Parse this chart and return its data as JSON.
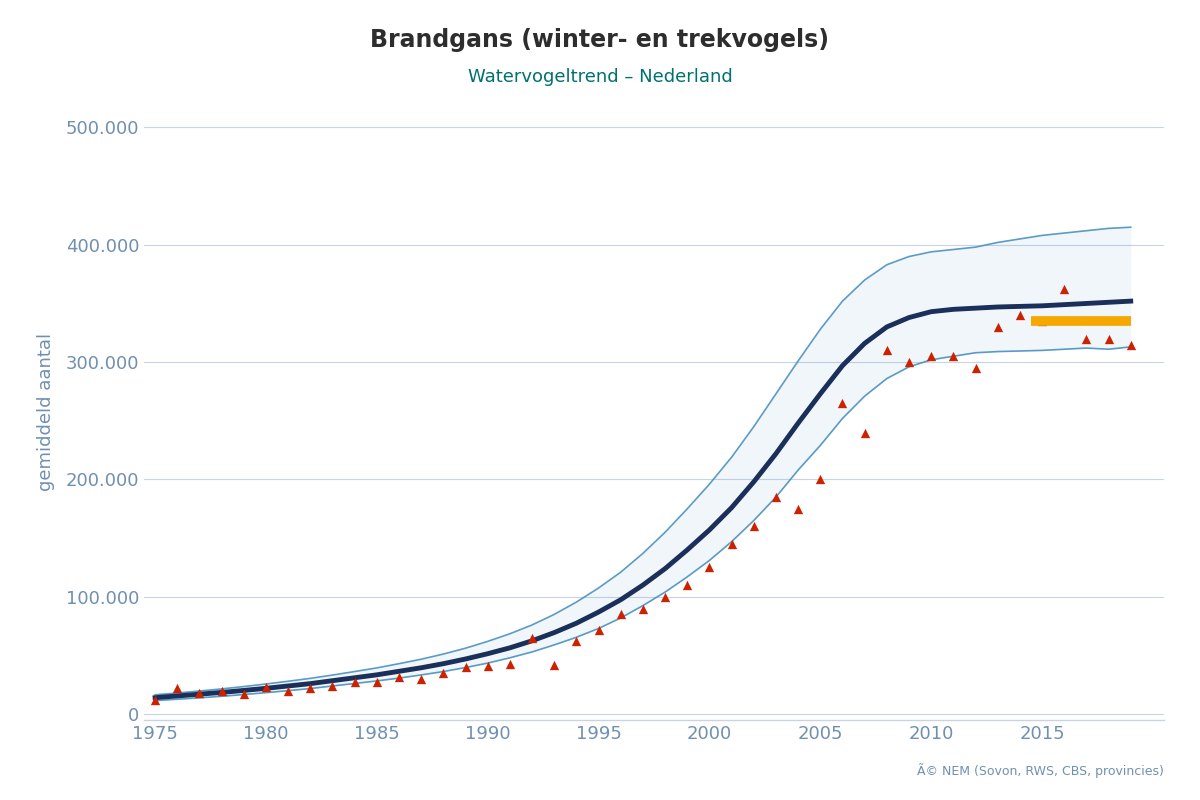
{
  "title": "Brandgans (winter- en trekvogels)",
  "subtitle": "Watervogeltrend – Nederland",
  "xlabel": "",
  "ylabel": "gemiddeld aantal",
  "copyright_text": "Ã© NEM (Sovon, RWS, CBS, provincies)",
  "xmin": 1975,
  "xmax": 2020,
  "ymin": -5000,
  "ymax": 520000,
  "yticks": [
    0,
    100000,
    200000,
    300000,
    400000,
    500000
  ],
  "ytick_labels": [
    "0",
    "100.000",
    "200.000",
    "300.000",
    "400.000",
    "500.000"
  ],
  "xticks": [
    1975,
    1980,
    1985,
    1990,
    1995,
    2000,
    2005,
    2010,
    2015
  ],
  "bg_color": "#ffffff",
  "grid_color": "#c8d4e4",
  "title_color": "#2d2d2d",
  "subtitle_color": "#007070",
  "axis_color": "#7090b0",
  "trend_color": "#1a2f5a",
  "ci_color": "#4a90c0",
  "point_color": "#cc2200",
  "orange_color": "#f5a800",
  "trend_years": [
    1975,
    1976,
    1977,
    1978,
    1979,
    1980,
    1981,
    1982,
    1983,
    1984,
    1985,
    1986,
    1987,
    1988,
    1989,
    1990,
    1991,
    1992,
    1993,
    1994,
    1995,
    1996,
    1997,
    1998,
    1999,
    2000,
    2001,
    2002,
    2003,
    2004,
    2005,
    2006,
    2007,
    2008,
    2009,
    2010,
    2011,
    2012,
    2013,
    2014,
    2015,
    2016,
    2017,
    2018,
    2019
  ],
  "trend_values": [
    14000,
    15500,
    17000,
    18500,
    20200,
    22000,
    24000,
    26000,
    28500,
    31000,
    33500,
    36500,
    39500,
    43000,
    47000,
    51500,
    56500,
    62500,
    69500,
    77500,
    87000,
    97500,
    110000,
    124000,
    140000,
    157000,
    176000,
    198000,
    222000,
    248000,
    273000,
    297000,
    316000,
    330000,
    338000,
    343000,
    345000,
    346000,
    347000,
    347500,
    348000,
    349000,
    350000,
    351000,
    352000
  ],
  "ci_upper": [
    16500,
    18000,
    19700,
    21500,
    23500,
    25700,
    28000,
    30500,
    33300,
    36300,
    39400,
    43000,
    46800,
    51200,
    56200,
    62000,
    68500,
    76000,
    85000,
    95500,
    107500,
    121000,
    137000,
    155000,
    175000,
    196000,
    219000,
    245000,
    273000,
    301000,
    328000,
    352000,
    370000,
    383000,
    390000,
    394000,
    396000,
    398000,
    402000,
    405000,
    408000,
    410000,
    412000,
    414000,
    415000
  ],
  "ci_lower": [
    11500,
    12700,
    13900,
    15200,
    16700,
    18300,
    20000,
    21800,
    24000,
    26100,
    28300,
    30700,
    33400,
    36300,
    39700,
    43500,
    48000,
    53000,
    59000,
    65500,
    73000,
    82000,
    92500,
    104000,
    117000,
    131000,
    147000,
    165000,
    185000,
    208000,
    229000,
    252000,
    271000,
    286000,
    296000,
    302000,
    305000,
    308000,
    309000,
    309500,
    310000,
    311000,
    312000,
    311000,
    313000
  ],
  "data_years": [
    1975,
    1976,
    1977,
    1978,
    1979,
    1980,
    1981,
    1982,
    1983,
    1984,
    1985,
    1986,
    1987,
    1988,
    1989,
    1990,
    1991,
    1992,
    1993,
    1994,
    1995,
    1996,
    1997,
    1998,
    1999,
    2000,
    2001,
    2002,
    2003,
    2004,
    2005,
    2006,
    2007,
    2008,
    2009,
    2010,
    2011,
    2012,
    2013,
    2014,
    2015,
    2016,
    2017,
    2018,
    2019
  ],
  "data_values": [
    12000,
    22000,
    18000,
    20000,
    17000,
    23000,
    20000,
    22000,
    24000,
    27000,
    27000,
    32000,
    30000,
    35000,
    40000,
    41000,
    43000,
    65000,
    42000,
    62000,
    72000,
    85000,
    90000,
    100000,
    110000,
    125000,
    145000,
    160000,
    185000,
    175000,
    200000,
    265000,
    240000,
    310000,
    300000,
    305000,
    305000,
    295000,
    330000,
    340000,
    335000,
    362000,
    320000,
    320000,
    315000
  ],
  "orange_x_start": 2014.5,
  "orange_x_end": 2019,
  "orange_y": 335000
}
